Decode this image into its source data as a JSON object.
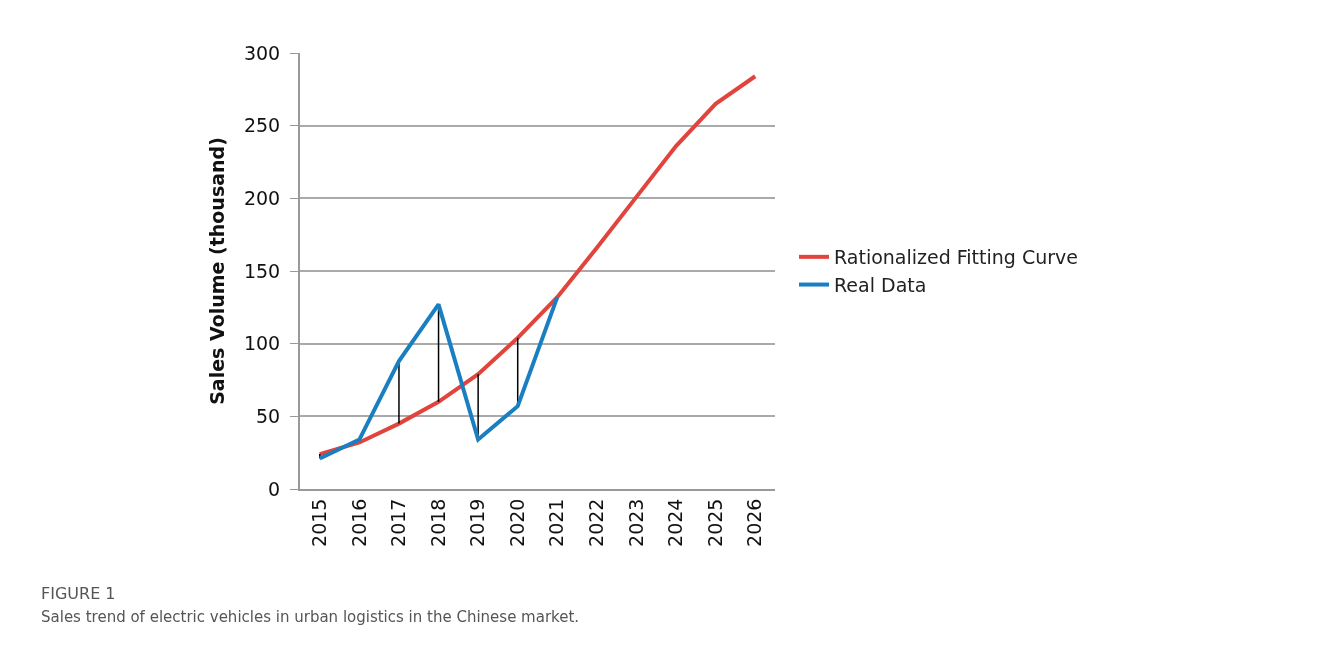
{
  "chart_data": {
    "type": "line",
    "ylabel": "Sales Volume (thousand)",
    "categories": [
      "2015",
      "2016",
      "2017",
      "2018",
      "2019",
      "2020",
      "2021",
      "2022",
      "2023",
      "2024",
      "2025",
      "2026"
    ],
    "series": [
      {
        "name": "Rationalized Fitting Curve",
        "color": "#e0443c",
        "values": [
          24,
          32,
          45,
          60,
          79,
          104,
          132,
          166,
          201,
          236,
          265,
          284
        ]
      },
      {
        "name": "Real Data",
        "color": "#1a7fc1",
        "values": [
          21,
          34,
          88,
          127,
          34,
          57,
          132,
          null,
          null,
          null,
          null,
          null
        ],
        "errors": [
          [
            21,
            24
          ],
          null,
          [
            45,
            88
          ],
          [
            60,
            127
          ],
          [
            34,
            79
          ],
          [
            57,
            104
          ],
          null,
          null,
          null,
          null,
          null,
          null
        ]
      }
    ],
    "ylim": [
      0,
      300
    ],
    "yticks": [
      0,
      50,
      100,
      150,
      200,
      250,
      300
    ],
    "grid": "y",
    "legend": "right",
    "marker": "none",
    "line_style": "solid",
    "annotations": [
      "FIGURE 1",
      "Sales trend of electric vehicles in urban logistics in the Chinese market."
    ]
  }
}
